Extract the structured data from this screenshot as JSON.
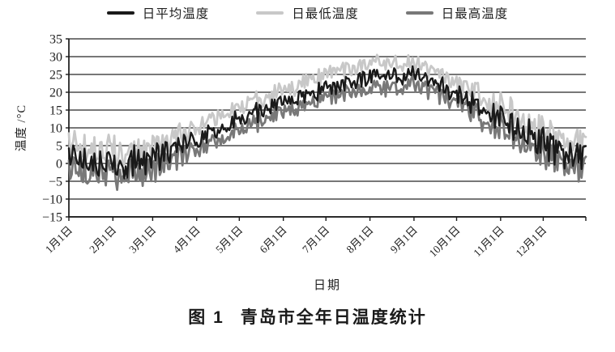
{
  "legend": {
    "items": [
      {
        "label": "日平均温度",
        "color": "#1a1a1a"
      },
      {
        "label": "日最低温度",
        "color": "#c8c8c8"
      },
      {
        "label": "日最高温度",
        "color": "#787878"
      }
    ]
  },
  "axes": {
    "y_title": "温度 /°C",
    "x_title": "日期"
  },
  "caption": {
    "figure_label": "图 1",
    "figure_title": "青岛市全年日温度统计"
  },
  "chart_data": {
    "type": "line",
    "title": "图 1 青岛市全年日温度统计",
    "xlabel": "日期",
    "ylabel": "温度 /°C",
    "ylim": [
      -15,
      35
    ],
    "ytick_step": 5,
    "yticks": [
      35,
      30,
      25,
      20,
      15,
      10,
      5,
      0,
      -5,
      -10,
      -15
    ],
    "x_tick_labels": [
      "1月1日",
      "2月1日",
      "3月1日",
      "4月1日",
      "5月1日",
      "6月1日",
      "7月1日",
      "8月1日",
      "9月1日",
      "10月1日",
      "11月1日",
      "12月1日"
    ],
    "month_start_days": [
      0,
      31,
      59,
      90,
      120,
      151,
      181,
      212,
      243,
      273,
      304,
      334
    ],
    "days_per_year": 365,
    "anchor_days": [
      0,
      31,
      59,
      90,
      120,
      151,
      181,
      212,
      243,
      273,
      304,
      334,
      364
    ],
    "daily_fluctuation_c": [
      3.4,
      3.4,
      3.2,
      2.6,
      2.2,
      2.0,
      1.8,
      1.9,
      2.0,
      2.6,
      3.2,
      3.4,
      3.4
    ],
    "grid": "horizontal",
    "grid_color": "#4a4a4a",
    "axis_color": "#1a1a1a",
    "legend_position": "top",
    "series": [
      {
        "name": "日平均温度",
        "color": "#1a1a1a",
        "line_width": 2.4,
        "monthly_values": [
          2,
          0,
          1,
          7,
          12,
          17,
          21,
          24.5,
          25,
          20,
          12.5,
          5.5,
          1.5
        ]
      },
      {
        "name": "日最低温度",
        "color": "#c8c8c8",
        "line_width": 2.8,
        "monthly_values": [
          5.5,
          3.5,
          4.5,
          10.5,
          15.5,
          20.5,
          25,
          28.5,
          28,
          23,
          16,
          9,
          5
        ]
      },
      {
        "name": "日最高温度",
        "color": "#787878",
        "line_width": 2.8,
        "monthly_values": [
          -1,
          -3,
          -2,
          4,
          9,
          14.5,
          18.5,
          21,
          22.5,
          17.5,
          9.5,
          2.5,
          -1.5
        ]
      }
    ]
  }
}
